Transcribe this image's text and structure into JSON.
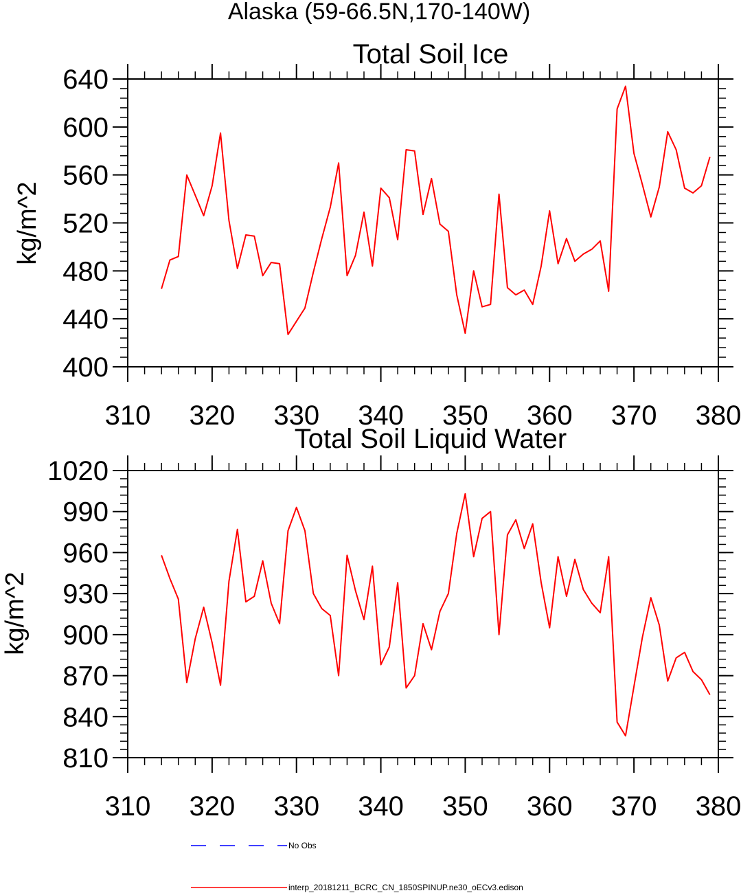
{
  "region_title": "Alaska (59-66.5N,170-140W)",
  "colors": {
    "model_line": "#ff0000",
    "obs_line": "#0000ff",
    "axes": "#000000"
  },
  "chart_data": [
    {
      "type": "line",
      "title": "Total Soil Ice",
      "xlabel": "",
      "ylabel": "kg/m^2",
      "xlim": [
        310,
        380
      ],
      "ylim": [
        400,
        640
      ],
      "xticks": [
        310,
        320,
        330,
        340,
        350,
        360,
        370,
        380
      ],
      "yticks": [
        400,
        440,
        480,
        520,
        560,
        600,
        640
      ],
      "grid": false,
      "series": [
        {
          "name": "interp_20181211_BCRC_CN_1850SPINUP.ne30_oECv3.edison",
          "x": [
            314,
            315,
            316,
            317,
            318,
            319,
            320,
            321,
            322,
            323,
            324,
            325,
            326,
            327,
            328,
            329,
            330,
            331,
            332,
            333,
            334,
            335,
            336,
            337,
            338,
            339,
            340,
            341,
            342,
            343,
            344,
            345,
            346,
            347,
            348,
            349,
            350,
            351,
            352,
            353,
            354,
            355,
            356,
            357,
            358,
            359,
            360,
            361,
            362,
            363,
            364,
            365,
            366,
            367,
            368,
            369,
            370,
            371,
            372,
            373,
            374,
            375,
            376,
            377,
            378,
            379
          ],
          "values": [
            465,
            489,
            492,
            560,
            543,
            526,
            551,
            595,
            522,
            482,
            510,
            509,
            476,
            487,
            486,
            427,
            438,
            449,
            479,
            507,
            533,
            570,
            476,
            493,
            529,
            484,
            549,
            541,
            506,
            581,
            580,
            527,
            557,
            519,
            513,
            460,
            428,
            480,
            450,
            452,
            544,
            466,
            460,
            464,
            452,
            484,
            530,
            486,
            507,
            488,
            494,
            498,
            505,
            463,
            615,
            634,
            578,
            552,
            525,
            550,
            596,
            581,
            549,
            545,
            551,
            575
          ]
        }
      ]
    },
    {
      "type": "line",
      "title": "Total Soil Liquid Water",
      "xlabel": "",
      "ylabel": "kg/m^2",
      "xlim": [
        310,
        380
      ],
      "ylim": [
        810,
        1020
      ],
      "xticks": [
        310,
        320,
        330,
        340,
        350,
        360,
        370,
        380
      ],
      "yticks": [
        810,
        840,
        870,
        900,
        930,
        960,
        990,
        1020
      ],
      "grid": false,
      "series": [
        {
          "name": "interp_20181211_BCRC_CN_1850SPINUP.ne30_oECv3.edison",
          "x": [
            314,
            315,
            316,
            317,
            318,
            319,
            320,
            321,
            322,
            323,
            324,
            325,
            326,
            327,
            328,
            329,
            330,
            331,
            332,
            333,
            334,
            335,
            336,
            337,
            338,
            339,
            340,
            341,
            342,
            343,
            344,
            345,
            346,
            347,
            348,
            349,
            350,
            351,
            352,
            353,
            354,
            355,
            356,
            357,
            358,
            359,
            360,
            361,
            362,
            363,
            364,
            365,
            366,
            367,
            368,
            369,
            370,
            371,
            372,
            373,
            374,
            375,
            376,
            377,
            378,
            379
          ],
          "values": [
            958,
            941,
            926,
            865,
            897,
            920,
            894,
            863,
            939,
            977,
            924,
            928,
            954,
            923,
            908,
            976,
            993,
            976,
            930,
            919,
            914,
            870,
            958,
            932,
            911,
            950,
            878,
            891,
            938,
            861,
            870,
            908,
            889,
            917,
            930,
            974,
            1003,
            957,
            985,
            990,
            900,
            973,
            984,
            963,
            981,
            938,
            905,
            957,
            928,
            955,
            933,
            923,
            916,
            957,
            836,
            826,
            862,
            898,
            927,
            907,
            866,
            883,
            887,
            873,
            867,
            856
          ]
        }
      ]
    }
  ],
  "legend": [
    {
      "label": "No Obs",
      "style": "dashed",
      "color": "#0000ff"
    },
    {
      "label": "interp_20181211_BCRC_CN_1850SPINUP.ne30_oECv3.edison",
      "style": "solid",
      "color": "#ff0000"
    }
  ]
}
